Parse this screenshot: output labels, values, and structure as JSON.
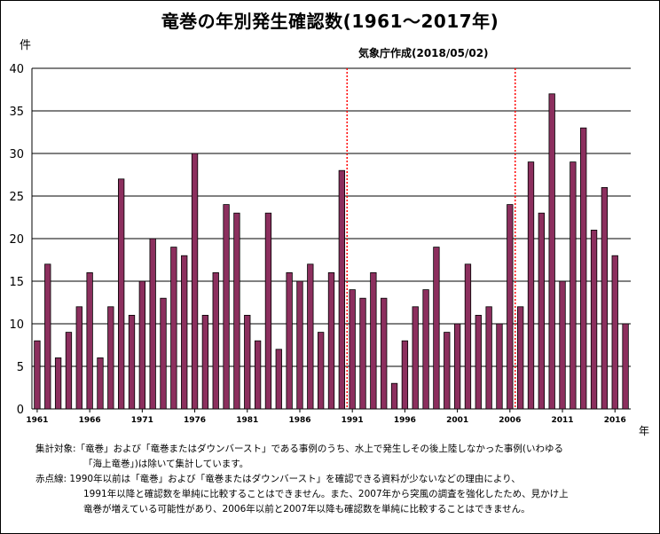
{
  "header": {
    "title": "竜巻の年別発生確認数(1961～2017年)",
    "subtitle": "気象庁作成(2018/05/02)",
    "unit_y": "件",
    "unit_x": "年"
  },
  "notes": {
    "line1": "集計対象:「竜巻」および「竜巻またはダウンバースト」である事例のうち、水上で発生しその後上陸しなかった事例(いわゆる",
    "line2": "「海上竜巻」)は除いて集計しています。",
    "line3": "赤点線: 1990年以前は「竜巻」および「竜巻またはダウンバースト」を確認できる資料が少ないなどの理由により、",
    "line4": "1991年以降と確認数を単純に比較することはできません。また、2007年から突風の調査を強化したため、見かけ上",
    "line5": "竜巻が増えている可能性があり、2006年以前と2007年以降も確認数を単純に比較することはできません。"
  },
  "colors": {
    "bar_fill": "#8c2f5e",
    "bar_stroke": "#000000",
    "grid": "#000000",
    "divider": "#ff0000"
  },
  "chart_data": {
    "type": "bar",
    "title": "竜巻の年別発生確認数(1961～2017年)",
    "ylabel": "件",
    "xlabel": "年",
    "ylim": [
      0,
      40
    ],
    "yticks": [
      0,
      5,
      10,
      15,
      20,
      25,
      30,
      35,
      40
    ],
    "grid": true,
    "x_tick_labels": [
      "1961",
      "1966",
      "1971",
      "1976",
      "1981",
      "1986",
      "1991",
      "1996",
      "2001",
      "2006",
      "2011",
      "2016"
    ],
    "categories": [
      1961,
      1962,
      1963,
      1964,
      1965,
      1966,
      1967,
      1968,
      1969,
      1970,
      1971,
      1972,
      1973,
      1974,
      1975,
      1976,
      1977,
      1978,
      1979,
      1980,
      1981,
      1982,
      1983,
      1984,
      1985,
      1986,
      1987,
      1988,
      1989,
      1990,
      1991,
      1992,
      1993,
      1994,
      1995,
      1996,
      1997,
      1998,
      1999,
      2000,
      2001,
      2002,
      2003,
      2004,
      2005,
      2006,
      2007,
      2008,
      2009,
      2010,
      2011,
      2012,
      2013,
      2014,
      2015,
      2016,
      2017
    ],
    "values": [
      8,
      17,
      6,
      9,
      12,
      16,
      6,
      12,
      27,
      11,
      15,
      20,
      13,
      19,
      18,
      30,
      11,
      16,
      24,
      23,
      11,
      8,
      23,
      7,
      16,
      15,
      17,
      9,
      16,
      28,
      14,
      13,
      16,
      13,
      3,
      8,
      12,
      14,
      19,
      9,
      10,
      17,
      11,
      12,
      10,
      24,
      12,
      29,
      23,
      37,
      15,
      29,
      33,
      21,
      26,
      18,
      10
    ],
    "dividers_after_year": [
      1990,
      2006
    ]
  }
}
